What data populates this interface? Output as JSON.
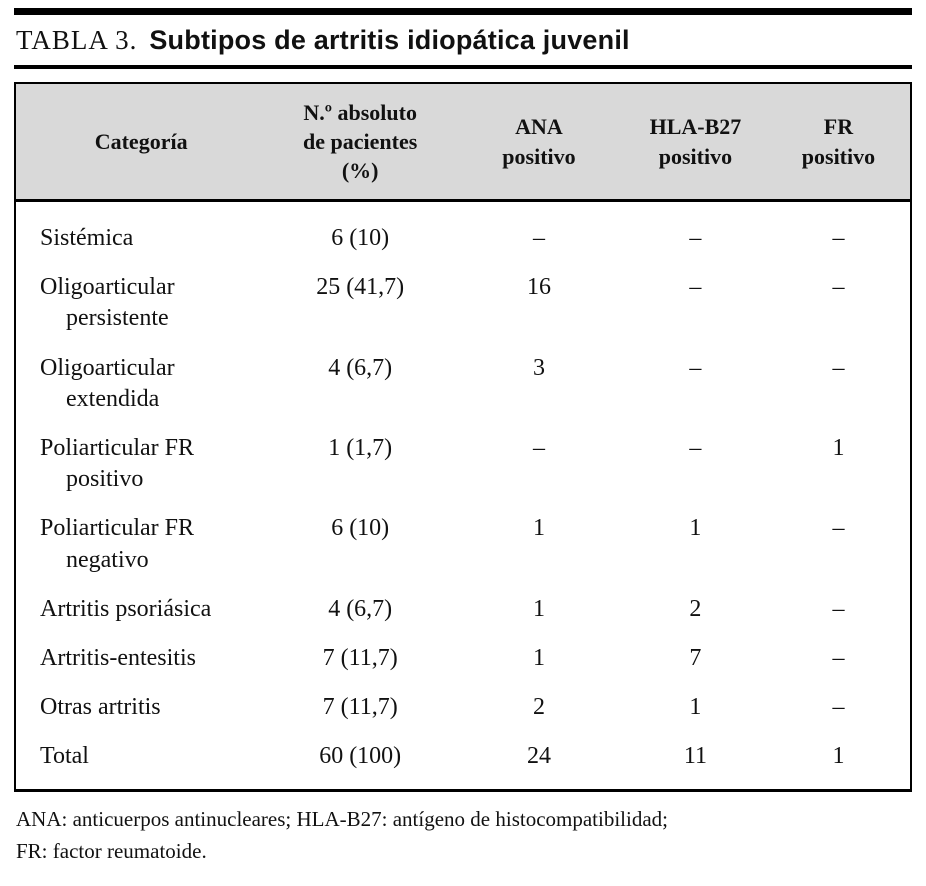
{
  "caption": {
    "label": "TABLA 3.",
    "title": "Subtipos de artritis idiopática juvenil"
  },
  "colors": {
    "header_bg": "#d9d9d9",
    "rule": "#000000"
  },
  "table": {
    "headers": [
      {
        "lines": [
          "Categoría"
        ]
      },
      {
        "lines": [
          "N.º absoluto",
          "de pacientes",
          "(%)"
        ]
      },
      {
        "lines": [
          "ANA",
          "positivo"
        ]
      },
      {
        "lines": [
          "HLA-B27",
          "positivo"
        ]
      },
      {
        "lines": [
          "FR",
          "positivo"
        ]
      }
    ],
    "rows": [
      {
        "category": [
          "Sistémica"
        ],
        "values": [
          "6 (10)",
          "–",
          "–",
          "–"
        ]
      },
      {
        "category": [
          "Oligoarticular",
          "persistente"
        ],
        "values": [
          "25 (41,7)",
          "16",
          "–",
          "–"
        ]
      },
      {
        "category": [
          "Oligoarticular",
          "extendida"
        ],
        "values": [
          "4 (6,7)",
          "3",
          "–",
          "–"
        ]
      },
      {
        "category": [
          "Poliarticular FR",
          "positivo"
        ],
        "values": [
          "1 (1,7)",
          "–",
          "–",
          "1"
        ]
      },
      {
        "category": [
          "Poliarticular FR",
          "negativo"
        ],
        "values": [
          "6 (10)",
          "1",
          "1",
          "–"
        ]
      },
      {
        "category": [
          "Artritis psoriásica"
        ],
        "values": [
          "4 (6,7)",
          "1",
          "2",
          "–"
        ]
      },
      {
        "category": [
          "Artritis-entesitis"
        ],
        "values": [
          "7 (11,7)",
          "1",
          "7",
          "–"
        ]
      },
      {
        "category": [
          "Otras artritis"
        ],
        "values": [
          "7 (11,7)",
          "2",
          "1",
          "–"
        ]
      },
      {
        "category": [
          "Total"
        ],
        "values": [
          "60 (100)",
          "24",
          "11",
          "1"
        ]
      }
    ]
  },
  "footnote": {
    "line1": "ANA: anticuerpos antinucleares; HLA-B27: antígeno de histocompatibilidad;",
    "line2": "FR: factor reumatoide."
  }
}
